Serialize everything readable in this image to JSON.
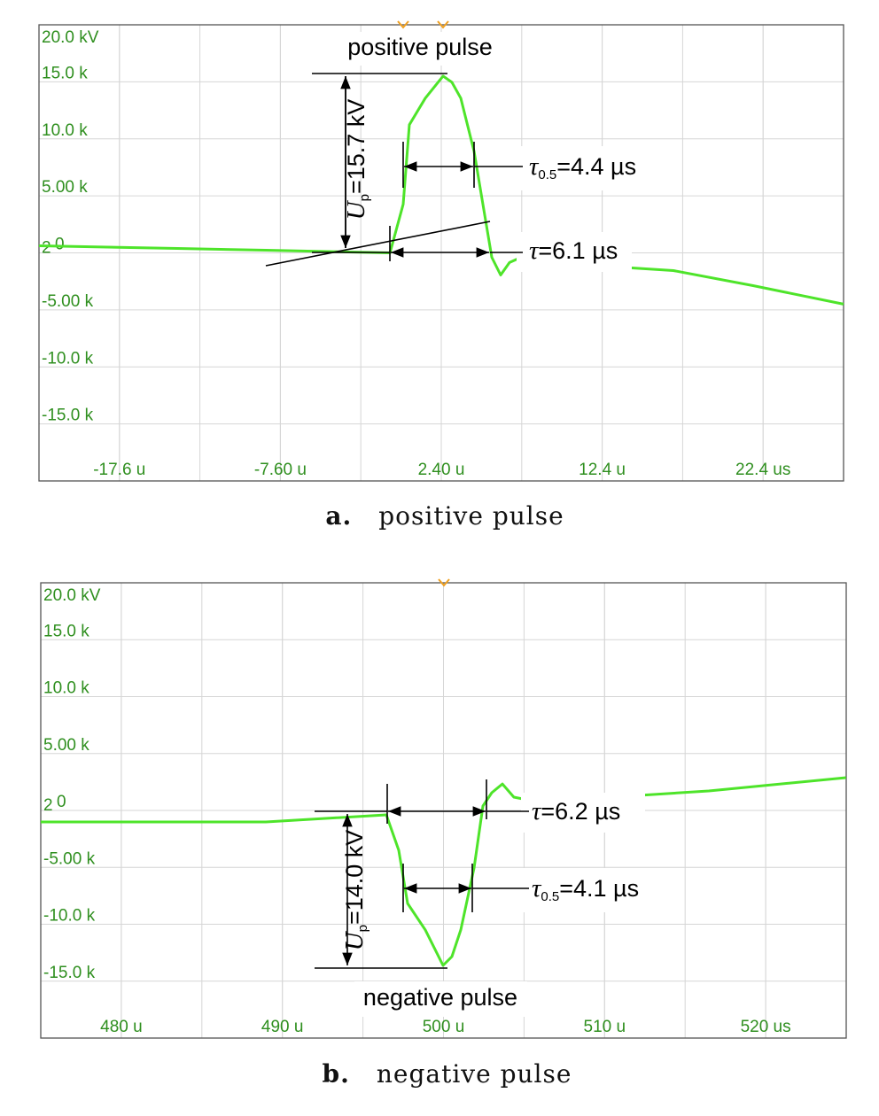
{
  "chart_data": [
    {
      "type": "line",
      "x": [
        -22.6,
        -14.0,
        -8.5,
        -0.79,
        0.03,
        0.42,
        1.41,
        2.51,
        3.06,
        3.61,
        4.44,
        4.99,
        5.54,
        6.09,
        6.64,
        7.36,
        null,
        12.42,
        16.83,
        21.78,
        27.4
      ],
      "values": [
        0.62,
        0.39,
        0.23,
        0,
        4.26,
        11.24,
        13.57,
        15.5,
        14.96,
        13.57,
        8.91,
        4.26,
        -0.39,
        -1.94,
        -0.85,
        -0.39,
        null,
        -1.16,
        -1.55,
        -2.87,
        -4.5
      ],
      "color": "#4ee42a",
      "xlim": [
        -22.6,
        27.4
      ],
      "ylim": [
        -20,
        20
      ],
      "xticks": [
        {
          "value": -17.6,
          "label": "-17.6 u"
        },
        {
          "value": -7.6,
          "label": "-7.60 u"
        },
        {
          "value": 2.4,
          "label": "2.40 u"
        },
        {
          "value": 12.4,
          "label": "12.4 u"
        },
        {
          "value": 22.4,
          "label": "22.4 us"
        }
      ],
      "yticks": [
        {
          "value": 20,
          "label": "20.0 kV"
        },
        {
          "value": 15,
          "label": "15.0 k"
        },
        {
          "value": 10,
          "label": "10.0 k"
        },
        {
          "value": 5,
          "label": "5.00 k"
        },
        0,
        {
          "value": -5,
          "label": "-5.00 k"
        },
        {
          "value": -10,
          "label": "-10.0 k"
        },
        {
          "value": -15,
          "label": "-15.0 k"
        }
      ],
      "grid": true,
      "channel_label": "2",
      "annotations": [
        {
          "text": "positive pulse"
        },
        {
          "symbol": "U",
          "subscript": "p",
          "text": "=15.7 kV"
        },
        {
          "symbol": "τ",
          "subscript": "0.5",
          "text": "=4.4 µs"
        },
        {
          "symbol": "τ",
          "text": "=6.1 µs"
        }
      ],
      "caption": {
        "label": "a.",
        "text": "positive pulse"
      }
    },
    {
      "type": "line",
      "x": [
        475,
        488.97,
        496.45,
        497.22,
        497.77,
        498.87,
        499.97,
        500.52,
        501.07,
        501.9,
        502.45,
        503.0,
        503.66,
        504.37,
        505.2,
        null,
        510.42,
        516.47,
        524.99
      ],
      "values": [
        -1.01,
        -1.01,
        -0.39,
        -3.5,
        -8.17,
        -10.5,
        -13.62,
        -12.84,
        -10.5,
        -5.06,
        0.39,
        1.56,
        2.33,
        1.17,
        0.93,
        null,
        1.17,
        1.71,
        2.88
      ],
      "color": "#4ee42a",
      "xlim": [
        475,
        525
      ],
      "ylim": [
        -20,
        20
      ],
      "xticks": [
        {
          "value": 480,
          "label": "480 u"
        },
        {
          "value": 490,
          "label": "490 u"
        },
        {
          "value": 500,
          "label": "500 u"
        },
        {
          "value": 510,
          "label": "510 u"
        },
        {
          "value": 520,
          "label": "520 us"
        }
      ],
      "yticks": [
        {
          "value": 20,
          "label": "20.0 kV"
        },
        {
          "value": 15,
          "label": "15.0 k"
        },
        {
          "value": 10,
          "label": "10.0 k"
        },
        {
          "value": 5,
          "label": "5.00 k"
        },
        0,
        {
          "value": -5,
          "label": "-5.00 k"
        },
        {
          "value": -10,
          "label": "-10.0 k"
        },
        {
          "value": -15,
          "label": "-15.0 k"
        }
      ],
      "grid": true,
      "channel_label": "2",
      "annotations": [
        {
          "text": "negative pulse"
        },
        {
          "symbol": "U",
          "subscript": "p",
          "text": "=14.0 kV"
        },
        {
          "symbol": "τ",
          "subscript": "0.5",
          "text": "=4.1 µs"
        },
        {
          "symbol": "τ",
          "text": "=6.2 µs"
        }
      ],
      "caption": {
        "label": "b.",
        "text": "negative pulse"
      }
    }
  ]
}
